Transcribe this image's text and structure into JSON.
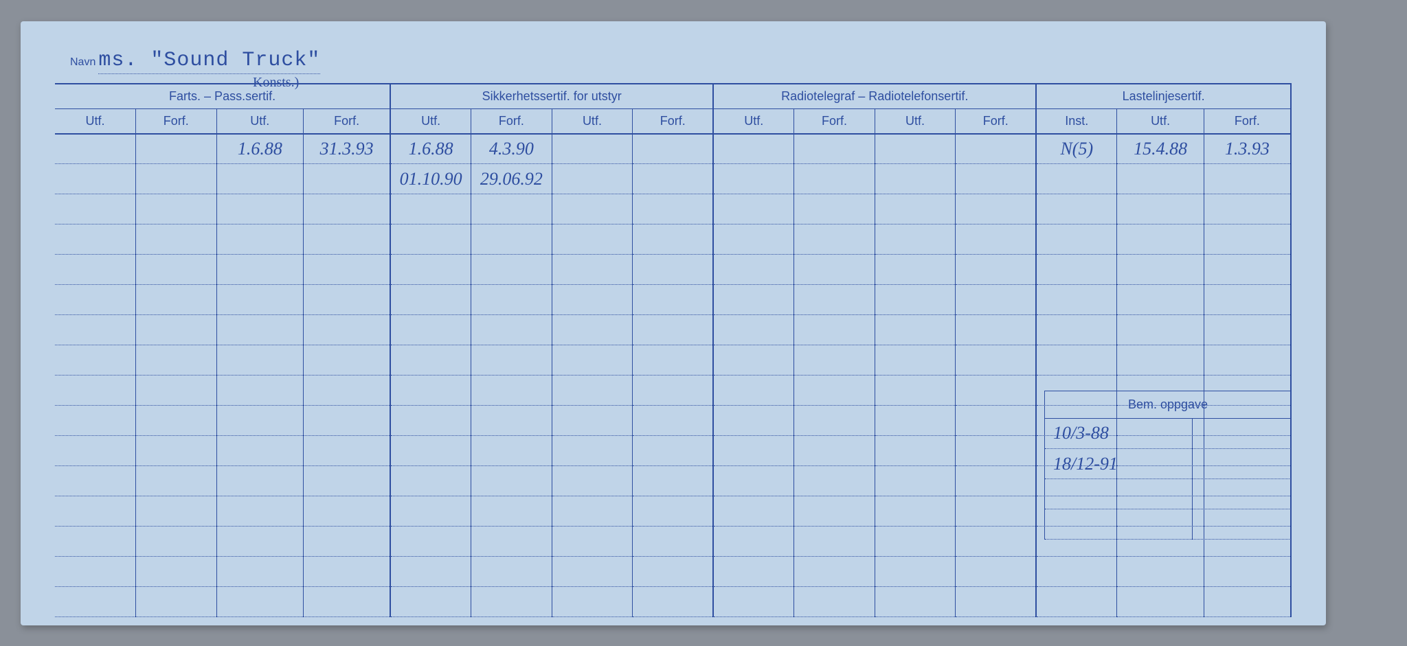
{
  "colors": {
    "card_bg": "#c0d4e8",
    "page_bg": "#8a9099",
    "ink": "#2e4ea0",
    "hole": "#1a1a1a"
  },
  "navn": {
    "label": "Navn",
    "value": "ms. \"Sound Truck\""
  },
  "annotation_over_pass": "Konsts.)",
  "groups": [
    {
      "label": "Farts. – Pass.sertif.",
      "cols": 4
    },
    {
      "label": "Sikkerhetssertif. for utstyr",
      "cols": 4
    },
    {
      "label": "Radiotelegraf – Radiotelefonsertif.",
      "cols": 4
    },
    {
      "label": "Lastelinjesertif.",
      "cols": 3
    }
  ],
  "subheaders": [
    "Utf.",
    "Forf.",
    "Utf.",
    "Forf.",
    "Utf.",
    "Forf.",
    "Utf.",
    "Forf.",
    "Utf.",
    "Forf.",
    "Utf.",
    "Forf.",
    "Inst.",
    "Utf.",
    "Forf."
  ],
  "rows": [
    [
      "",
      "",
      "1.6.88",
      "31.3.93",
      "1.6.88",
      "4.3.90",
      "",
      "",
      "",
      "",
      "",
      "",
      "N(5)",
      "15.4.88",
      "1.3.93"
    ],
    [
      "",
      "",
      "",
      "",
      "01.10.90",
      "29.06.92",
      "",
      "",
      "",
      "",
      "",
      "",
      "",
      "",
      ""
    ],
    [
      "",
      "",
      "",
      "",
      "",
      "",
      "",
      "",
      "",
      "",
      "",
      "",
      "",
      "",
      ""
    ],
    [
      "",
      "",
      "",
      "",
      "",
      "",
      "",
      "",
      "",
      "",
      "",
      "",
      "",
      "",
      ""
    ],
    [
      "",
      "",
      "",
      "",
      "",
      "",
      "",
      "",
      "",
      "",
      "",
      "",
      "",
      "",
      ""
    ],
    [
      "",
      "",
      "",
      "",
      "",
      "",
      "",
      "",
      "",
      "",
      "",
      "",
      "",
      "",
      ""
    ],
    [
      "",
      "",
      "",
      "",
      "",
      "",
      "",
      "",
      "",
      "",
      "",
      "",
      "",
      "",
      ""
    ],
    [
      "",
      "",
      "",
      "",
      "",
      "",
      "",
      "",
      "",
      "",
      "",
      "",
      "",
      "",
      ""
    ],
    [
      "",
      "",
      "",
      "",
      "",
      "",
      "",
      "",
      "",
      "",
      "",
      "",
      "",
      "",
      ""
    ],
    [
      "",
      "",
      "",
      "",
      "",
      "",
      "",
      "",
      "",
      "",
      "",
      "",
      "",
      "",
      ""
    ],
    [
      "",
      "",
      "",
      "",
      "",
      "",
      "",
      "",
      "",
      "",
      "",
      "",
      "",
      "",
      ""
    ],
    [
      "",
      "",
      "",
      "",
      "",
      "",
      "",
      "",
      "",
      "",
      "",
      "",
      "",
      "",
      ""
    ],
    [
      "",
      "",
      "",
      "",
      "",
      "",
      "",
      "",
      "",
      "",
      "",
      "",
      "",
      "",
      ""
    ],
    [
      "",
      "",
      "",
      "",
      "",
      "",
      "",
      "",
      "",
      "",
      "",
      "",
      "",
      "",
      ""
    ],
    [
      "",
      "",
      "",
      "",
      "",
      "",
      "",
      "",
      "",
      "",
      "",
      "",
      "",
      "",
      ""
    ],
    [
      "",
      "",
      "",
      "",
      "",
      "",
      "",
      "",
      "",
      "",
      "",
      "",
      "",
      "",
      ""
    ]
  ],
  "bem": {
    "label": "Bem. oppgave",
    "entries": [
      "10/3-88",
      "18/12-91",
      "",
      ""
    ]
  },
  "num_holes": 11
}
